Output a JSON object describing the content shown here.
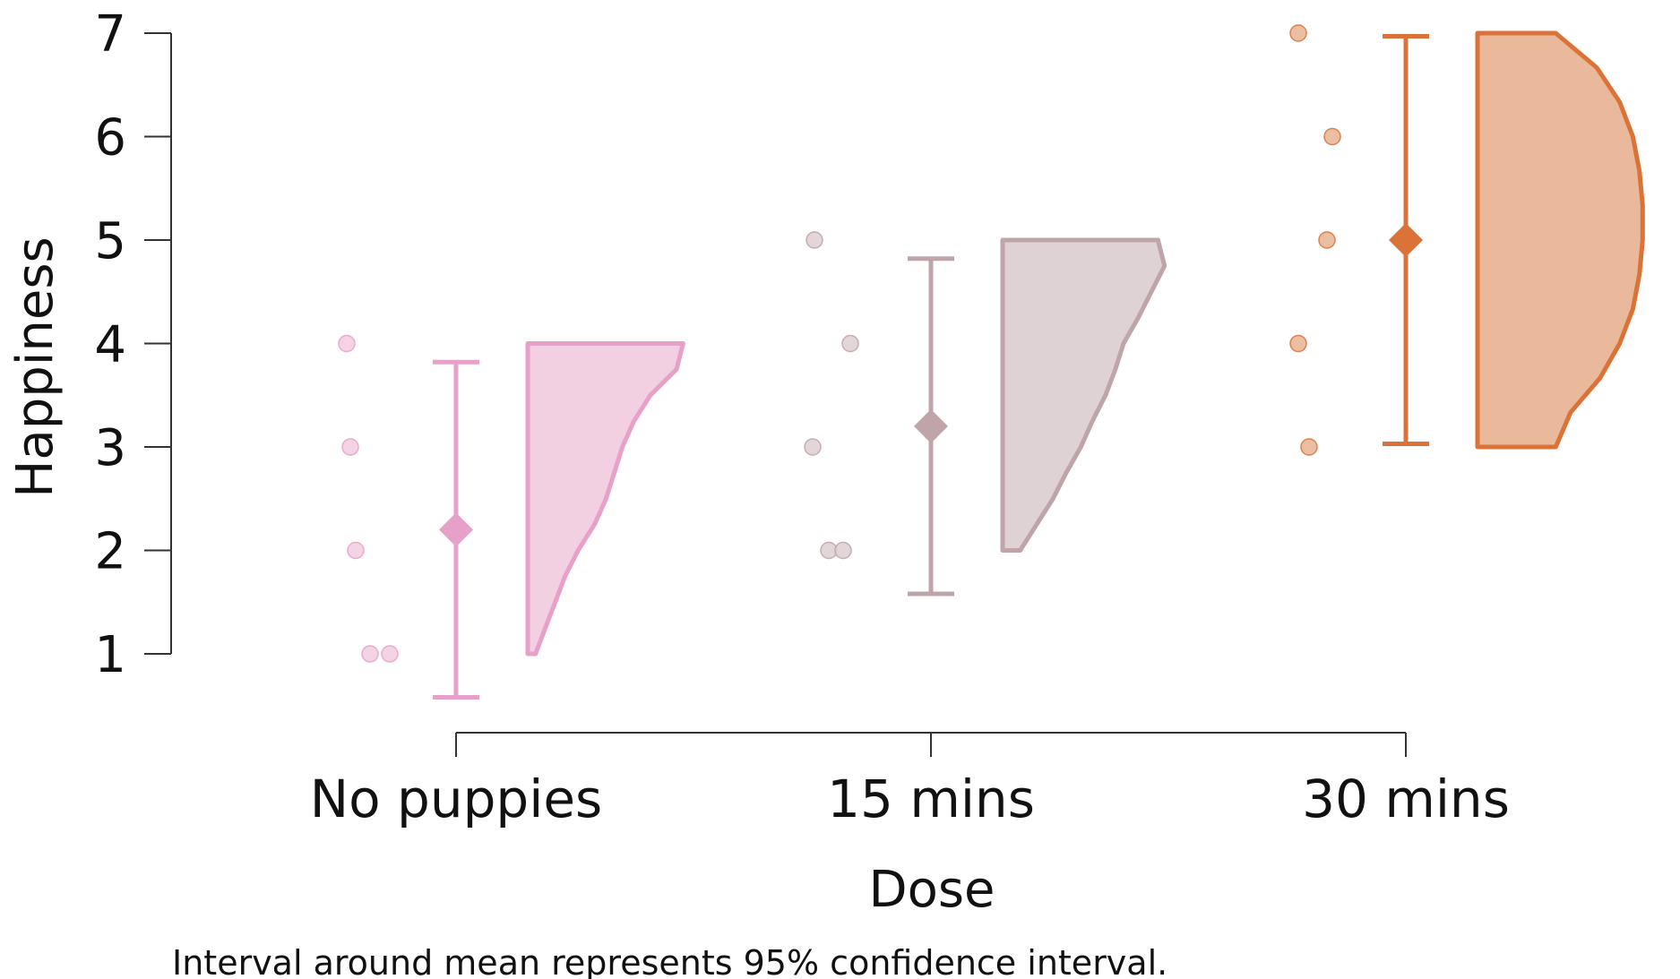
{
  "chart_data": {
    "type": "raincloud",
    "xlabel": "Dose",
    "ylabel": "Happiness",
    "caption": "Interval around mean represents 95% confidence interval.",
    "categories": [
      "No puppies",
      "15 mins",
      "30 mins"
    ],
    "ylim": [
      0.3,
      7
    ],
    "yticks": [
      "1",
      "2",
      "3",
      "4",
      "5",
      "6",
      "7"
    ],
    "grid": false,
    "legend": "none",
    "groups": [
      {
        "category": "No puppies",
        "color": "#e7a1c8",
        "fill": "#f3cfe2",
        "points": [
          4,
          3,
          2,
          1,
          1
        ],
        "mean": 2.2,
        "ci": [
          0.58,
          3.82
        ],
        "density_range": [
          1,
          4
        ],
        "density": [
          0.92,
          0.88,
          0.72,
          0.62,
          0.55,
          0.5,
          0.45,
          0.38,
          0.28,
          0.2,
          0.14,
          0.08,
          0.02
        ]
      },
      {
        "category": "15 mins",
        "color": "#bfa5a9",
        "fill": "#dfd2d4",
        "points": [
          5,
          4,
          3,
          2,
          2
        ],
        "mean": 3.2,
        "ci": [
          1.58,
          4.82
        ],
        "density_range": [
          2,
          5
        ],
        "density": [
          0.92,
          0.96,
          0.88,
          0.8,
          0.71,
          0.66,
          0.6,
          0.52,
          0.45,
          0.36,
          0.28,
          0.18,
          0.08
        ]
      },
      {
        "category": "30 mins",
        "color": "#db7339",
        "fill": "#eab89a",
        "points": [
          7,
          6,
          5,
          4,
          3
        ],
        "mean": 5.0,
        "ci": [
          3.03,
          6.97
        ],
        "density_range": [
          3,
          7
        ],
        "density": [
          0.45,
          0.7,
          0.84,
          0.92,
          0.96,
          0.98,
          0.98,
          0.96,
          0.92,
          0.84,
          0.72,
          0.54,
          0.45
        ]
      }
    ]
  }
}
